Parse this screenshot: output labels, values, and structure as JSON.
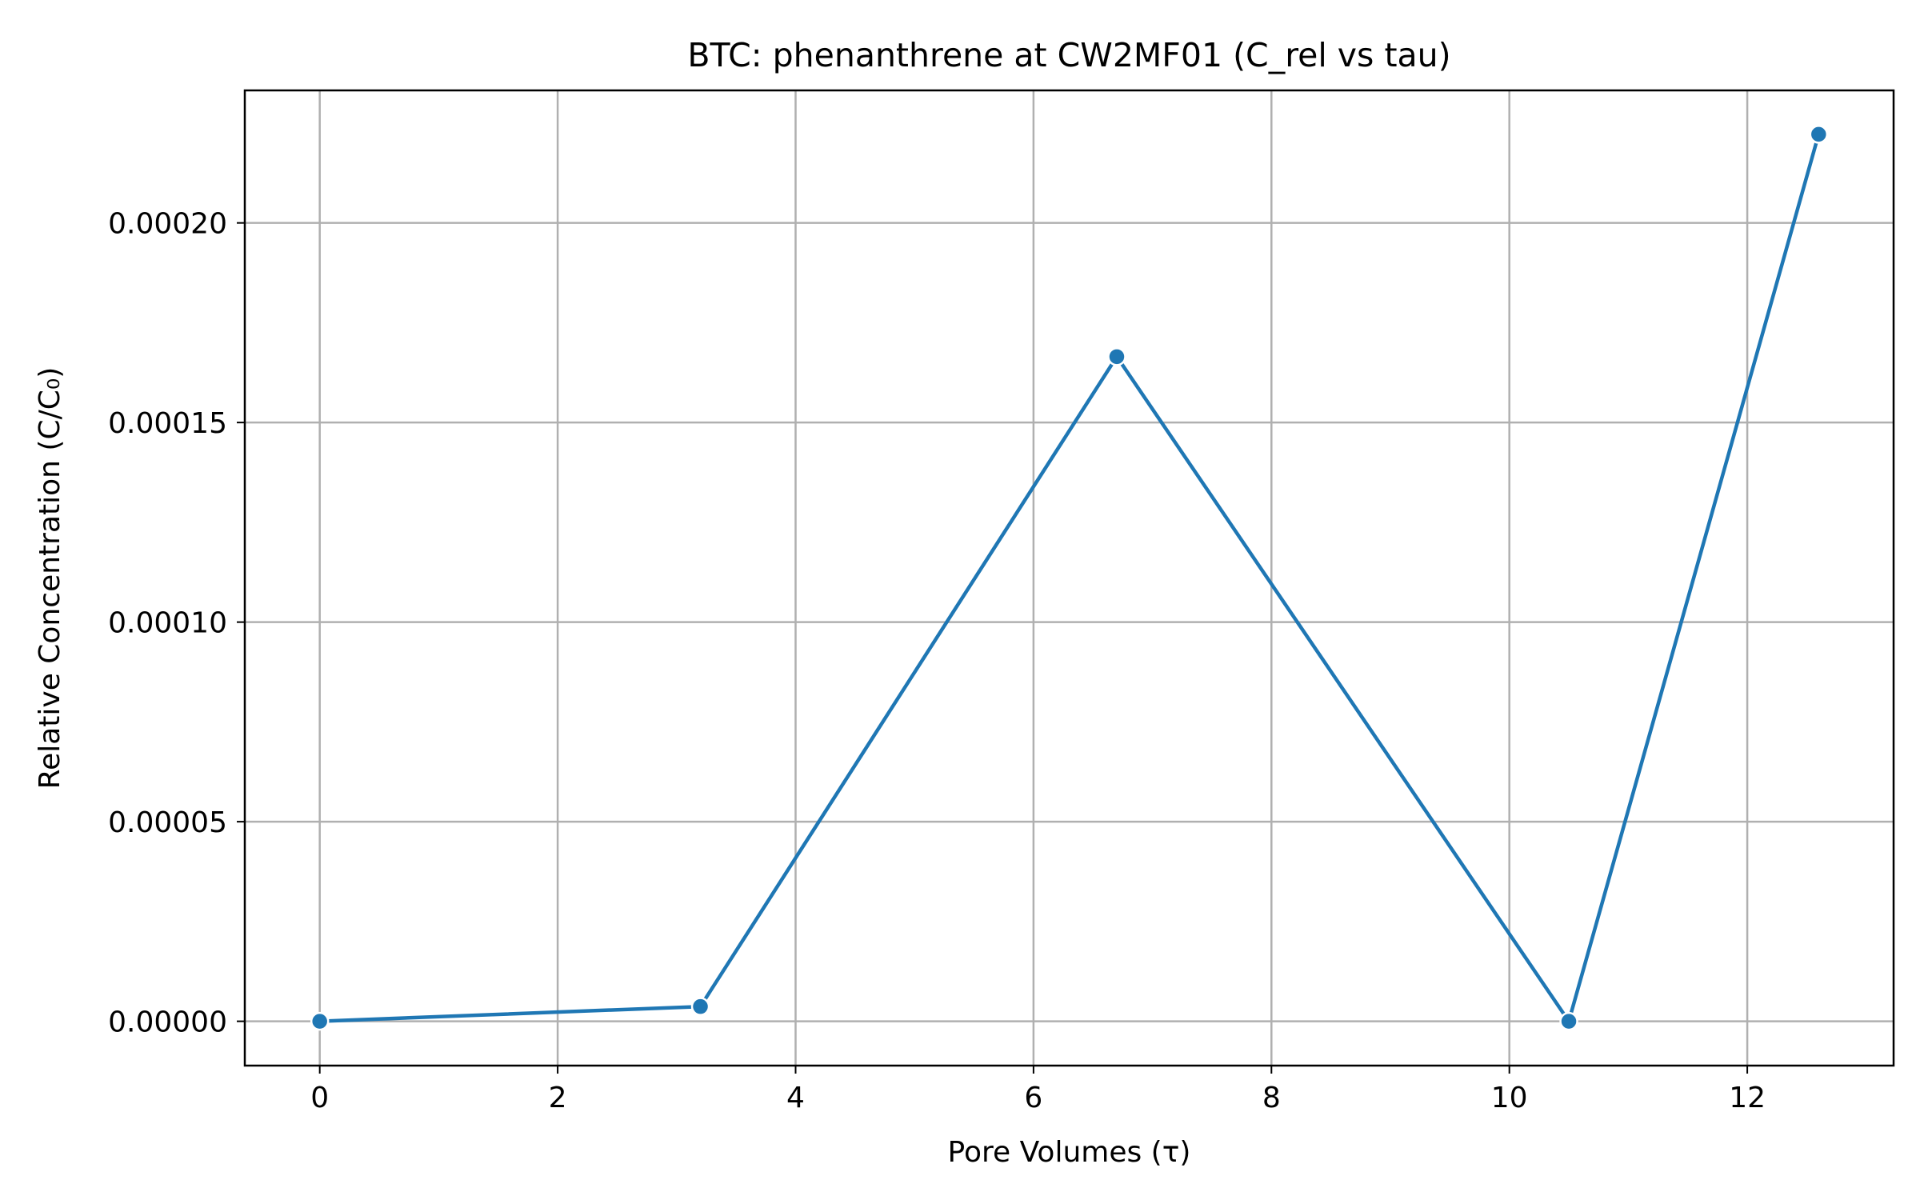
{
  "chart_data": {
    "type": "line",
    "title": "BTC: phenanthrene at CW2MF01 (C_rel vs tau)",
    "xlabel": "Pore Volumes (τ)",
    "ylabel": "Relative Concentration (C/C₀)",
    "xlim": [
      -0.63,
      13.23
    ],
    "ylim": [
      -1.11e-05,
      0.0002332
    ],
    "xticks": [
      {
        "value": 0,
        "label": "0"
      },
      {
        "value": 2,
        "label": "2"
      },
      {
        "value": 4,
        "label": "4"
      },
      {
        "value": 6,
        "label": "6"
      },
      {
        "value": 8,
        "label": "8"
      },
      {
        "value": 10,
        "label": "10"
      },
      {
        "value": 12,
        "label": "12"
      }
    ],
    "yticks": [
      {
        "value": 0.0,
        "label": "0.00000"
      },
      {
        "value": 5e-05,
        "label": "0.00005"
      },
      {
        "value": 0.0001,
        "label": "0.00010"
      },
      {
        "value": 0.00015,
        "label": "0.00015"
      },
      {
        "value": 0.0002,
        "label": "0.00020"
      }
    ],
    "grid": true,
    "series": [
      {
        "color": "#1f77b4",
        "marker": "circle",
        "x": [
          0.0,
          3.2,
          6.7,
          10.5,
          12.6
        ],
        "y": [
          0.0,
          3.7e-06,
          0.0001665,
          0.0,
          0.0002222
        ]
      }
    ]
  }
}
